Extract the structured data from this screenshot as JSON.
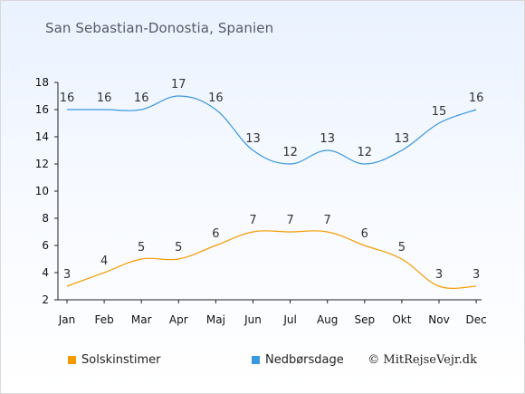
{
  "title": "San Sebastian-Donostia, Spanien",
  "copyright": "© MitRejseVejr.dk",
  "colors": {
    "sun": "#f59b00",
    "rain": "#3a98e0"
  },
  "chart_data": {
    "type": "line",
    "categories": [
      "Jan",
      "Feb",
      "Mar",
      "Apr",
      "Maj",
      "Jun",
      "Jul",
      "Aug",
      "Sep",
      "Okt",
      "Nov",
      "Dec"
    ],
    "series": [
      {
        "name": "Solskinstimer",
        "values": [
          3,
          4,
          5,
          5,
          6,
          7,
          7,
          7,
          6,
          5,
          3,
          3
        ]
      },
      {
        "name": "Nedbørsdage",
        "values": [
          16,
          16,
          16,
          17,
          16,
          13,
          12,
          13,
          12,
          13,
          15,
          16
        ]
      }
    ],
    "yticks": [
      2,
      4,
      6,
      8,
      10,
      12,
      14,
      16,
      18
    ],
    "ylim": [
      2,
      18
    ],
    "grid": false,
    "legend": "bottom"
  }
}
